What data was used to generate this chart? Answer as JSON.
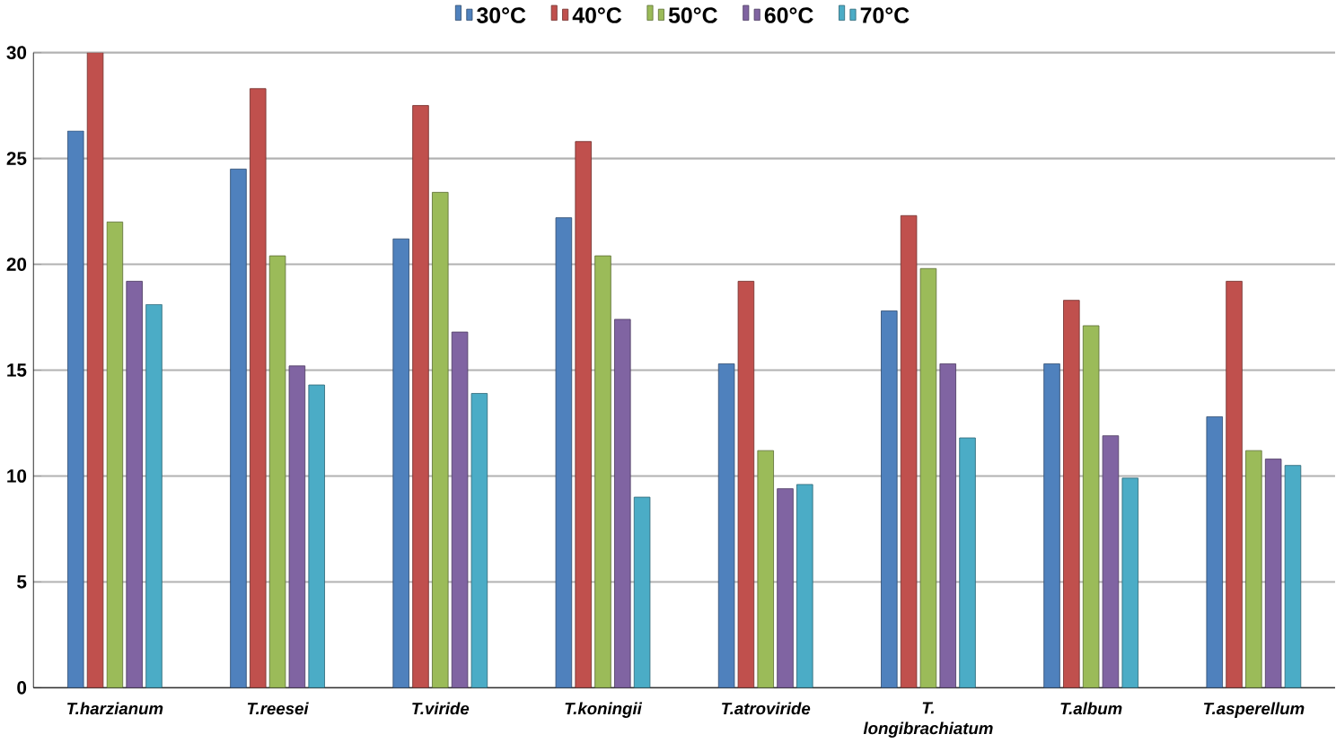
{
  "chart_data": {
    "type": "bar",
    "categories": [
      "T.harzianum",
      "T.reesei",
      "T.viride",
      "T.koningii",
      "T.atroviride",
      "T. longibrachiatum",
      "T.album",
      "T.asperellum"
    ],
    "series": [
      {
        "name": "30°C",
        "color": "#4f81bd",
        "values": [
          26.3,
          24.5,
          21.2,
          22.2,
          15.3,
          17.8,
          15.3,
          12.8
        ]
      },
      {
        "name": "40°C",
        "color": "#c0504d",
        "values": [
          30,
          28.3,
          27.5,
          25.8,
          19.2,
          22.3,
          18.3,
          19.2
        ]
      },
      {
        "name": "50°C",
        "color": "#9bbb59",
        "values": [
          22,
          20.4,
          23.4,
          20.4,
          11.2,
          19.8,
          17.1,
          11.2
        ]
      },
      {
        "name": "60°C",
        "color": "#8064a2",
        "values": [
          19.2,
          15.2,
          16.8,
          17.4,
          9.4,
          15.3,
          11.9,
          10.8
        ]
      },
      {
        "name": "70°C",
        "color": "#4bacc6",
        "values": [
          18.1,
          14.3,
          13.9,
          9,
          9.6,
          11.8,
          9.9,
          10.5
        ]
      }
    ],
    "ylim": [
      0,
      30
    ],
    "yticks": [
      0,
      5,
      10,
      15,
      20,
      25,
      30
    ],
    "grid": "y",
    "legend": "top"
  }
}
